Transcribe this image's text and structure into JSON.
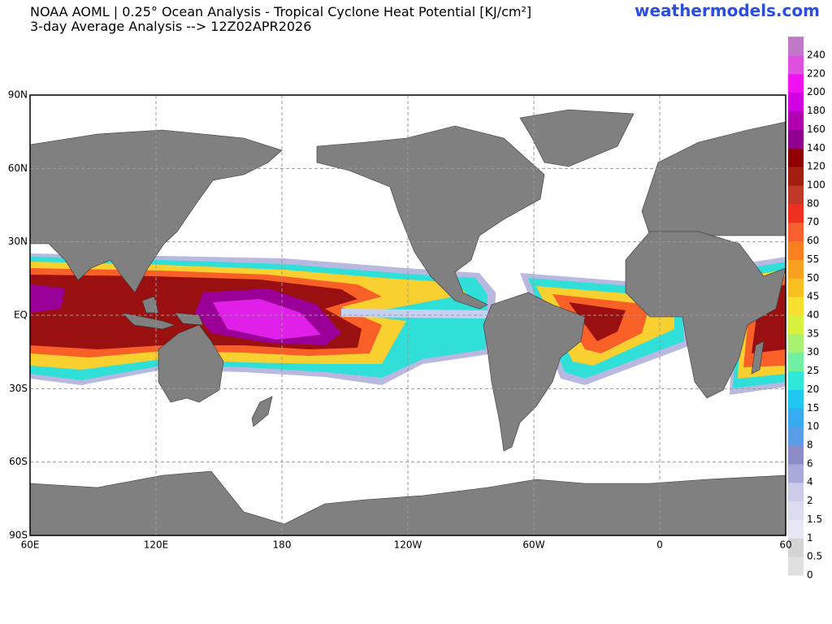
{
  "header": {
    "title": "NOAA AOML | 0.25° Ocean Analysis - Tropical Cyclone Heat Potential [KJ/cm²]",
    "subtitle": "3-day Average Analysis --> 12Z02APR2026",
    "site": "weathermodels.com"
  },
  "map": {
    "lat_labels": [
      "90N",
      "60N",
      "30N",
      "EQ",
      "30S",
      "60S",
      "90S"
    ],
    "lon_labels": [
      "60E",
      "120E",
      "180",
      "120W",
      "60W",
      "0",
      "60"
    ]
  },
  "colorbar": {
    "levels": [
      0,
      0.5,
      1,
      1.5,
      2,
      4,
      6,
      8,
      10,
      15,
      20,
      25,
      30,
      35,
      40,
      45,
      50,
      55,
      60,
      70,
      80,
      100,
      120,
      140,
      160,
      180,
      200,
      220,
      240
    ],
    "colors": [
      "#e0e0e0",
      "#d4d4d4",
      "#e8e8f4",
      "#dcdcf0",
      "#ccccea",
      "#aaaada",
      "#8c8cc8",
      "#5c9ce8",
      "#38aaf0",
      "#20c8f0",
      "#30e8d8",
      "#70f0a0",
      "#a8f070",
      "#d8f040",
      "#f8e030",
      "#f8c020",
      "#f8a020",
      "#f88020",
      "#f86030",
      "#f03020",
      "#c03828",
      "#a02010",
      "#900000",
      "#900090",
      "#b000b0",
      "#d000e0",
      "#f010f0",
      "#e050e0",
      "#c078c8"
    ]
  }
}
